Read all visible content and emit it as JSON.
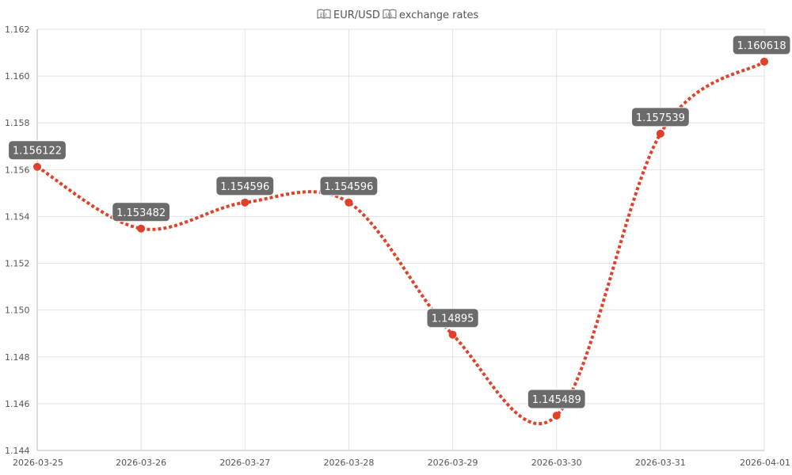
{
  "chart_data": {
    "type": "line",
    "title": "EUR/USD exchange rates",
    "title_icons": [
      "eu-flag-icon",
      "us-flag-icon"
    ],
    "x": [
      "2026-03-25",
      "2026-03-26",
      "2026-03-27",
      "2026-03-28",
      "2026-03-29",
      "2026-03-30",
      "2026-03-31",
      "2026-04-01"
    ],
    "series": [
      {
        "values": [
          1.156122,
          1.153482,
          1.154596,
          1.154596,
          1.14895,
          1.145489,
          1.157539,
          1.160618
        ],
        "labels": [
          "1.156122",
          "1.153482",
          "1.154596",
          "1.154596",
          "1.14895",
          "1.145489",
          "1.157539",
          "1.160618"
        ]
      }
    ],
    "ylim": [
      1.144,
      1.162
    ],
    "yticks": [
      "1.144",
      "1.146",
      "1.148",
      "1.150",
      "1.152",
      "1.154",
      "1.156",
      "1.158",
      "1.160",
      "1.162"
    ],
    "grid": true,
    "legend": "none",
    "line_style": "dotted",
    "line_color": "#e0412a",
    "point_color": "#e0412a",
    "label_bg_color": "#6b6b6b",
    "label_text_color": "#ffffff"
  }
}
